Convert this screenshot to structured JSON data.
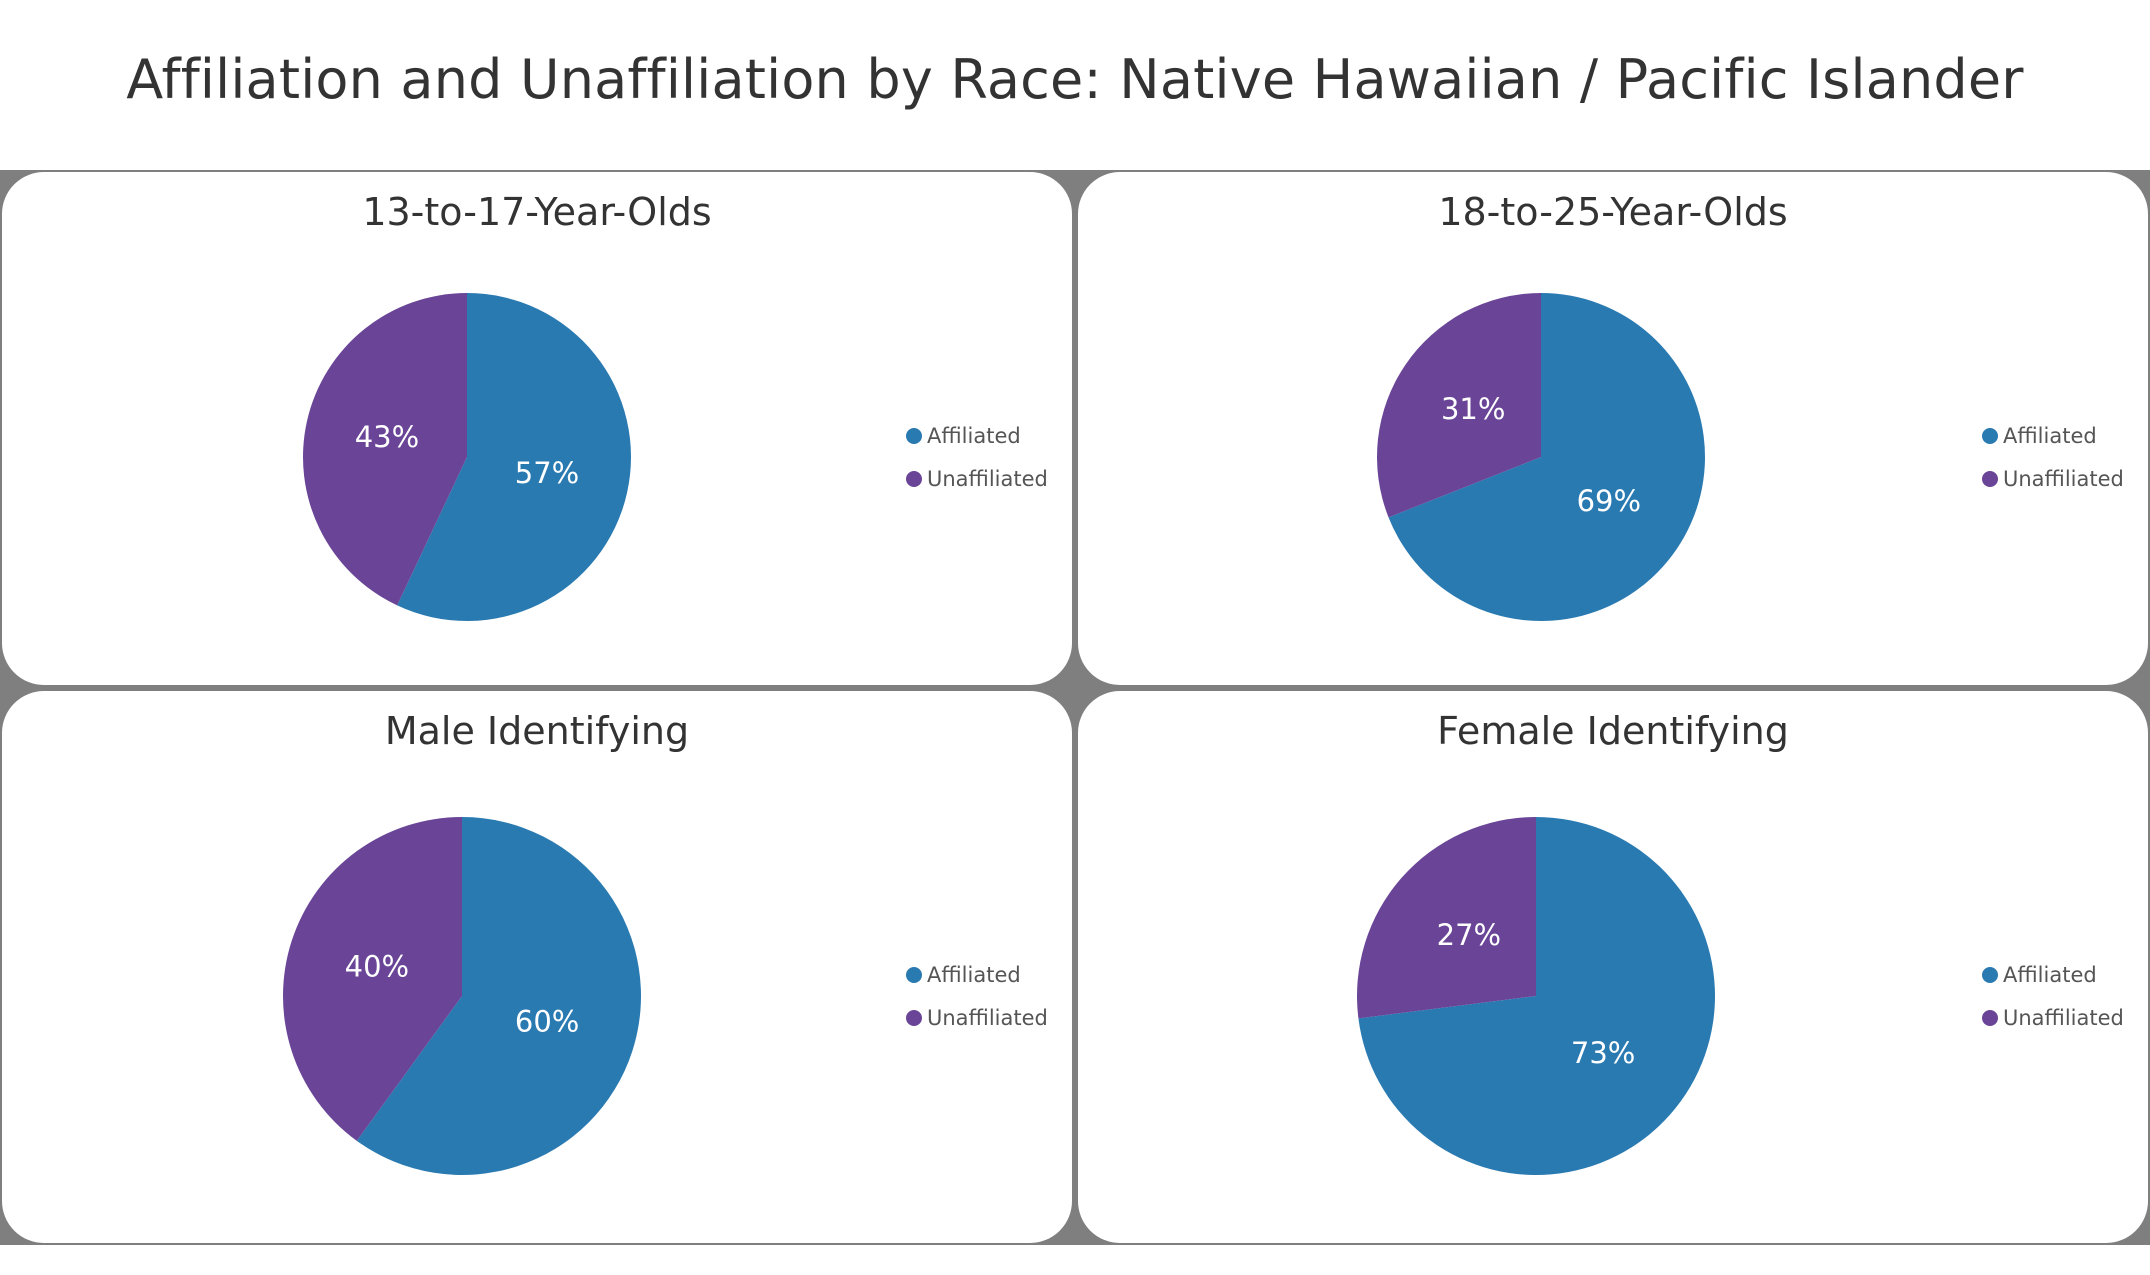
{
  "title": "Affiliation and Unaffiliation by Race: Native Hawaiian / Pacific Islander",
  "colors": {
    "affiliated": "#2a7ab2",
    "unaffiliated": "#6a4597"
  },
  "legend": [
    "Affiliated",
    "Unaffiliated"
  ],
  "chart_data": [
    {
      "type": "pie",
      "title": "13-to-17-Year-Olds",
      "categories": [
        "Affiliated",
        "Unaffiliated"
      ],
      "values": [
        57,
        43
      ],
      "labels": [
        "57%",
        "43%"
      ],
      "legend_position": "right"
    },
    {
      "type": "pie",
      "title": "18-to-25-Year-Olds",
      "categories": [
        "Affiliated",
        "Unaffiliated"
      ],
      "values": [
        69,
        31
      ],
      "labels": [
        "69%",
        "31%"
      ],
      "legend_position": "right"
    },
    {
      "type": "pie",
      "title": "Male Identifying",
      "categories": [
        "Affiliated",
        "Unaffiliated"
      ],
      "values": [
        60,
        40
      ],
      "labels": [
        "60%",
        "40%"
      ],
      "legend_position": "right"
    },
    {
      "type": "pie",
      "title": "Female Identifying",
      "categories": [
        "Affiliated",
        "Unaffiliated"
      ],
      "values": [
        73,
        27
      ],
      "labels": [
        "73%",
        "27%"
      ],
      "legend_position": "right"
    }
  ]
}
